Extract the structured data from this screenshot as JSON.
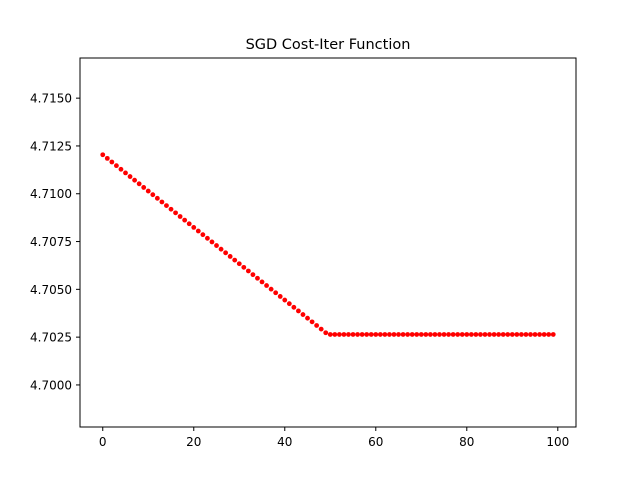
{
  "chart_data": {
    "type": "scatter",
    "title": "SGD Cost-Iter Function",
    "xlabel": "",
    "ylabel": "",
    "xlim": [
      -5,
      104
    ],
    "ylim": [
      4.6978,
      4.7171
    ],
    "xticks": [
      0,
      20,
      40,
      60,
      80,
      100
    ],
    "xtick_labels": [
      "0",
      "20",
      "40",
      "60",
      "80",
      "100"
    ],
    "yticks": [
      4.7,
      4.7025,
      4.705,
      4.7075,
      4.71,
      4.7125,
      4.715
    ],
    "ytick_labels": [
      "4.7000",
      "4.7025",
      "4.7050",
      "4.7075",
      "4.7100",
      "4.7125",
      "4.7150"
    ],
    "grid": false,
    "series": [
      {
        "marker_color": "#ff0000",
        "x": [
          0,
          1,
          2,
          3,
          4,
          5,
          6,
          7,
          8,
          9,
          10,
          11,
          12,
          13,
          14,
          15,
          16,
          17,
          18,
          19,
          20,
          21,
          22,
          23,
          24,
          25,
          26,
          27,
          28,
          29,
          30,
          31,
          32,
          33,
          34,
          35,
          36,
          37,
          38,
          39,
          40,
          41,
          42,
          43,
          44,
          45,
          46,
          47,
          48,
          49,
          50,
          51,
          52,
          53,
          54,
          55,
          56,
          57,
          58,
          59,
          60,
          61,
          62,
          63,
          64,
          65,
          66,
          67,
          68,
          69,
          70,
          71,
          72,
          73,
          74,
          75,
          76,
          77,
          78,
          79,
          80,
          81,
          82,
          83,
          84,
          85,
          86,
          87,
          88,
          89,
          90,
          91,
          92,
          93,
          94,
          95,
          96,
          97,
          98,
          99
        ],
        "y": [
          4.71204,
          4.71185,
          4.71166,
          4.71147,
          4.71128,
          4.71109,
          4.7109,
          4.71071,
          4.71052,
          4.71033,
          4.71014,
          4.70995,
          4.70976,
          4.70957,
          4.70938,
          4.70919,
          4.709,
          4.70881,
          4.70862,
          4.70843,
          4.70824,
          4.70805,
          4.70786,
          4.70767,
          4.70748,
          4.70729,
          4.7071,
          4.70691,
          4.70672,
          4.70653,
          4.70634,
          4.70615,
          4.70596,
          4.70577,
          4.70558,
          4.70539,
          4.7052,
          4.70501,
          4.70482,
          4.70463,
          4.70444,
          4.70425,
          4.70406,
          4.70387,
          4.70368,
          4.70349,
          4.7033,
          4.70311,
          4.70292,
          4.70273,
          4.70264,
          4.70264,
          4.70264,
          4.70264,
          4.70264,
          4.70264,
          4.70264,
          4.70264,
          4.70264,
          4.70264,
          4.70264,
          4.70264,
          4.70264,
          4.70264,
          4.70264,
          4.70264,
          4.70264,
          4.70264,
          4.70264,
          4.70264,
          4.70264,
          4.70264,
          4.70264,
          4.70264,
          4.70264,
          4.70264,
          4.70264,
          4.70264,
          4.70264,
          4.70264,
          4.70264,
          4.70264,
          4.70264,
          4.70264,
          4.70264,
          4.70264,
          4.70264,
          4.70264,
          4.70264,
          4.70264,
          4.70264,
          4.70264,
          4.70264,
          4.70264,
          4.70264,
          4.70264,
          4.70264,
          4.70264,
          4.70264,
          4.70264
        ]
      }
    ]
  }
}
